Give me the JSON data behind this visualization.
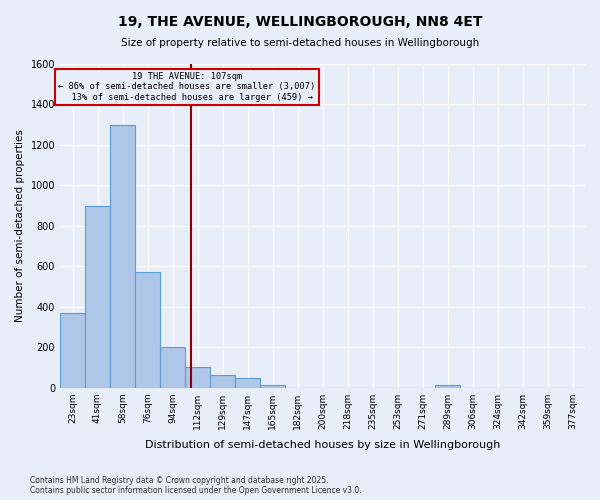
{
  "title": "19, THE AVENUE, WELLINGBOROUGH, NN8 4ET",
  "subtitle": "Size of property relative to semi-detached houses in Wellingborough",
  "xlabel": "Distribution of semi-detached houses by size in Wellingborough",
  "ylabel": "Number of semi-detached properties",
  "bin_labels": [
    "23sqm",
    "41sqm",
    "58sqm",
    "76sqm",
    "94sqm",
    "112sqm",
    "129sqm",
    "147sqm",
    "165sqm",
    "182sqm",
    "200sqm",
    "218sqm",
    "235sqm",
    "253sqm",
    "271sqm",
    "289sqm",
    "306sqm",
    "324sqm",
    "342sqm",
    "359sqm",
    "377sqm"
  ],
  "bar_heights": [
    370,
    900,
    1300,
    570,
    200,
    100,
    65,
    50,
    15,
    0,
    0,
    0,
    0,
    0,
    0,
    15,
    0,
    0,
    0,
    0,
    0
  ],
  "bar_color": "#aec6e8",
  "bar_edge_color": "#5a9fd4",
  "property_sqm": 107,
  "property_label": "19 THE AVENUE: 107sqm",
  "smaller_pct": 86,
  "smaller_count": 3007,
  "larger_pct": 13,
  "larger_count": 459,
  "vline_color": "#8b0000",
  "annotation_box_color": "#cc0000",
  "ylim": [
    0,
    1600
  ],
  "yticks": [
    0,
    200,
    400,
    600,
    800,
    1000,
    1200,
    1400,
    1600
  ],
  "bg_color": "#e8eef8",
  "grid_color": "#ffffff",
  "footer_line1": "Contains HM Land Registry data © Crown copyright and database right 2025.",
  "footer_line2": "Contains public sector information licensed under the Open Government Licence v3.0."
}
